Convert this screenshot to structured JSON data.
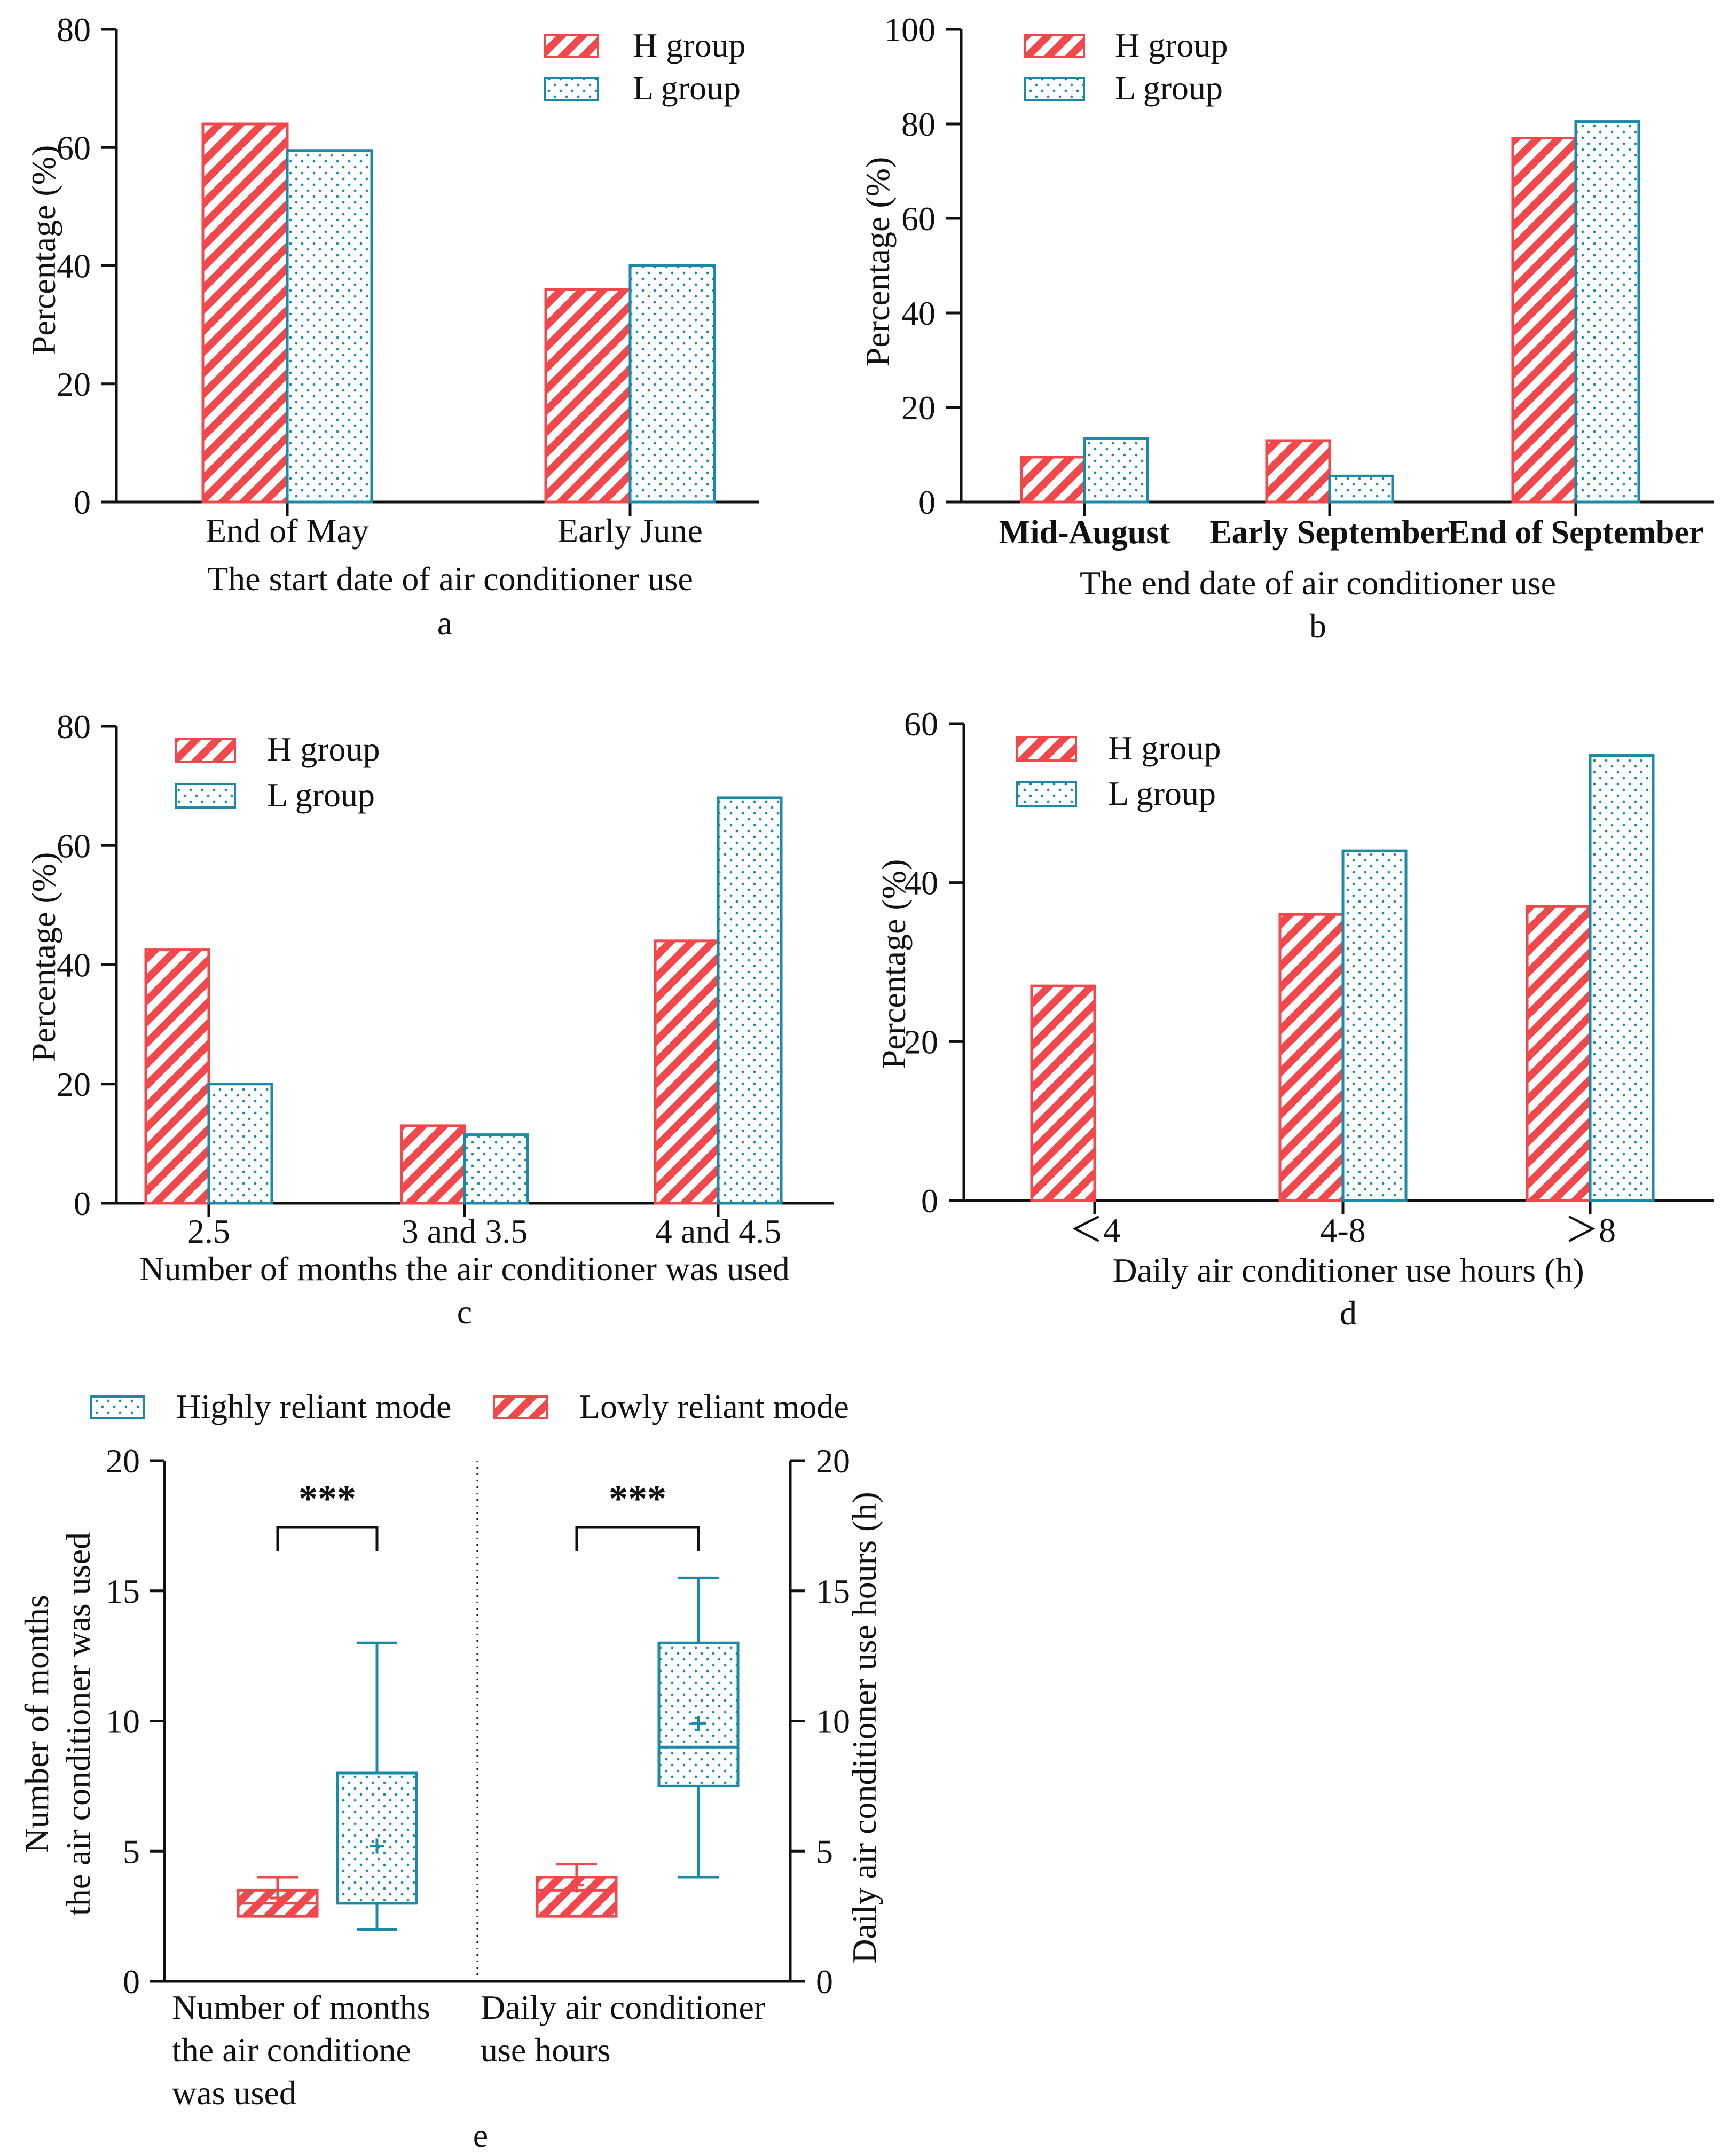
{
  "colors": {
    "h": "#f2474b",
    "l": "#1a8aa6",
    "axis": "#111111"
  },
  "chart_data": [
    {
      "id": "a",
      "type": "bar",
      "caption": "a",
      "xlabel": "The start date of air conditioner use",
      "ylabel": "Percentage (%)",
      "ylim": [
        0,
        80
      ],
      "yticks": [
        0,
        20,
        40,
        60,
        80
      ],
      "categories": [
        "End of May",
        "Early June"
      ],
      "series": [
        {
          "name": "H group",
          "values": [
            64,
            36
          ]
        },
        {
          "name": "L group",
          "values": [
            59.5,
            40
          ]
        }
      ]
    },
    {
      "id": "b",
      "type": "bar",
      "caption": "b",
      "xlabel": "The end date of air conditioner use",
      "ylabel": "Percentage (%)",
      "ylim": [
        0,
        100
      ],
      "yticks": [
        0,
        20,
        40,
        60,
        80,
        100
      ],
      "categories": [
        "Mid-August",
        "Early September",
        "End of September"
      ],
      "series": [
        {
          "name": "H group",
          "values": [
            9.5,
            13,
            77
          ]
        },
        {
          "name": "L group",
          "values": [
            13.5,
            5.5,
            80.5
          ]
        }
      ]
    },
    {
      "id": "c",
      "type": "bar",
      "caption": "c",
      "xlabel": "Number of months the air conditioner was used",
      "ylabel": "Percentage (%)",
      "ylim": [
        0,
        80
      ],
      "yticks": [
        0,
        20,
        40,
        60,
        80
      ],
      "categories": [
        "2.5",
        "3 and 3.5",
        "4 and 4.5"
      ],
      "series": [
        {
          "name": "H group",
          "values": [
            42.5,
            13,
            44
          ]
        },
        {
          "name": "L group",
          "values": [
            20,
            11.5,
            68
          ]
        }
      ]
    },
    {
      "id": "d",
      "type": "bar",
      "caption": "d",
      "xlabel": "Daily air conditioner use hours (h)",
      "ylabel": "Percentage  (%)",
      "ylim": [
        0,
        60
      ],
      "yticks": [
        0,
        20,
        40,
        60
      ],
      "categories": [
        "＜4",
        "4-8",
        "＞8"
      ],
      "series": [
        {
          "name": "H group",
          "values": [
            27,
            36,
            37
          ]
        },
        {
          "name": "L group",
          "values": [
            0,
            44,
            56
          ]
        }
      ]
    },
    {
      "id": "e",
      "type": "box",
      "caption": "e",
      "legend": [
        "Highly reliant mode",
        "Lowly reliant mode"
      ],
      "ylabel_left": [
        "Number of months",
        "the air conditioner was used"
      ],
      "ylabel_right": "Daily air conditioner use hours (h)",
      "ylim": [
        0,
        20
      ],
      "yticks": [
        0,
        5,
        10,
        15,
        20
      ],
      "groups": [
        {
          "label": [
            "Number of months",
            "the air conditione",
            "was used"
          ],
          "significance": "***",
          "lowly": {
            "min": 2.5,
            "q1": 2.5,
            "median": 3,
            "q3": 3.5,
            "max": 4,
            "mean": 3.2
          },
          "highly": {
            "min": 2,
            "q1": 3,
            "median": 3,
            "q3": 8,
            "max": 13,
            "mean": 5.2
          }
        },
        {
          "label": [
            "Daily air conditioner",
            "use hours"
          ],
          "significance": "***",
          "lowly": {
            "min": 2.5,
            "q1": 2.5,
            "median": 3.5,
            "q3": 4,
            "max": 4.5,
            "mean": 3.7
          },
          "highly": {
            "min": 4,
            "q1": 7.5,
            "median": 9,
            "q3": 13,
            "max": 15.5,
            "mean": 9.9
          }
        }
      ]
    }
  ]
}
